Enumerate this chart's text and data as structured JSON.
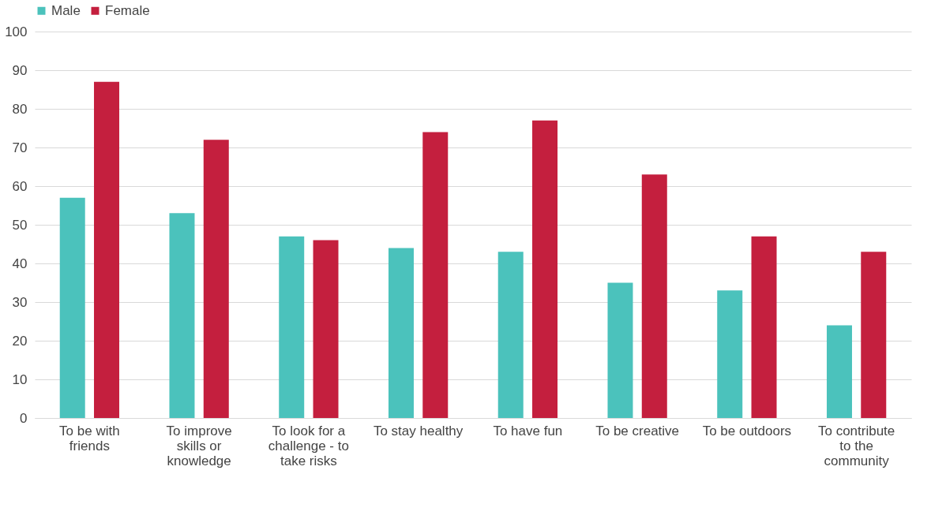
{
  "chart_data": {
    "type": "bar",
    "categories": [
      "To be with friends",
      "To improve skills or knowledge",
      "To look for a challenge - to take risks",
      "To stay healthy",
      "To have fun",
      "To be creative",
      "To be outdoors",
      "To contribute to the community"
    ],
    "series": [
      {
        "name": "Male",
        "color": "#4bc2bc",
        "values": [
          57,
          53,
          47,
          44,
          43,
          35,
          33,
          24
        ]
      },
      {
        "name": "Female",
        "color": "#c41f3e",
        "values": [
          87,
          72,
          46,
          74,
          77,
          63,
          47,
          43
        ]
      }
    ],
    "ylim": [
      0,
      100
    ],
    "yticks": [
      0,
      10,
      20,
      30,
      40,
      50,
      60,
      70,
      80,
      90,
      100
    ],
    "grid": "y",
    "legend": "top"
  }
}
